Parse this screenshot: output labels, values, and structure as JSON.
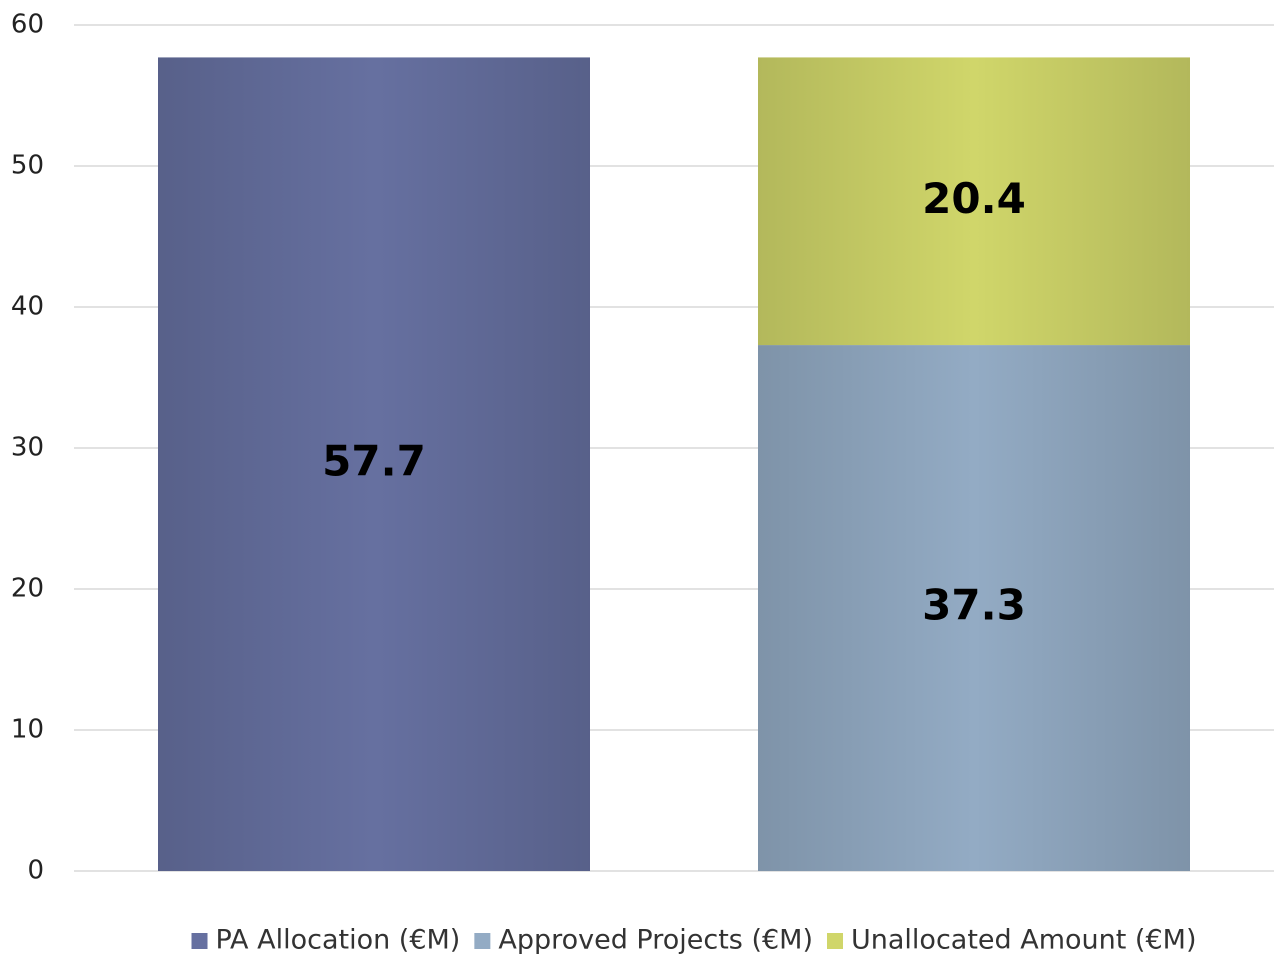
{
  "chart_data": {
    "type": "stacked_bar",
    "categories": [
      null,
      null
    ],
    "series": [
      {
        "name": "PA Allocation (€M)",
        "color": "#6670a0",
        "values": [
          57.7,
          null
        ]
      },
      {
        "name": "Approved Projects (€M)",
        "color": "#93abc4",
        "values": [
          null,
          37.3
        ]
      },
      {
        "name": "Unallocated Amount (€M)",
        "color": "#d0d66a",
        "values": [
          null,
          20.4
        ]
      }
    ],
    "ylim": [
      0,
      60
    ],
    "yticks": [
      0,
      10,
      20,
      30,
      40,
      50,
      60
    ],
    "grid": true,
    "legend": "bottom"
  }
}
